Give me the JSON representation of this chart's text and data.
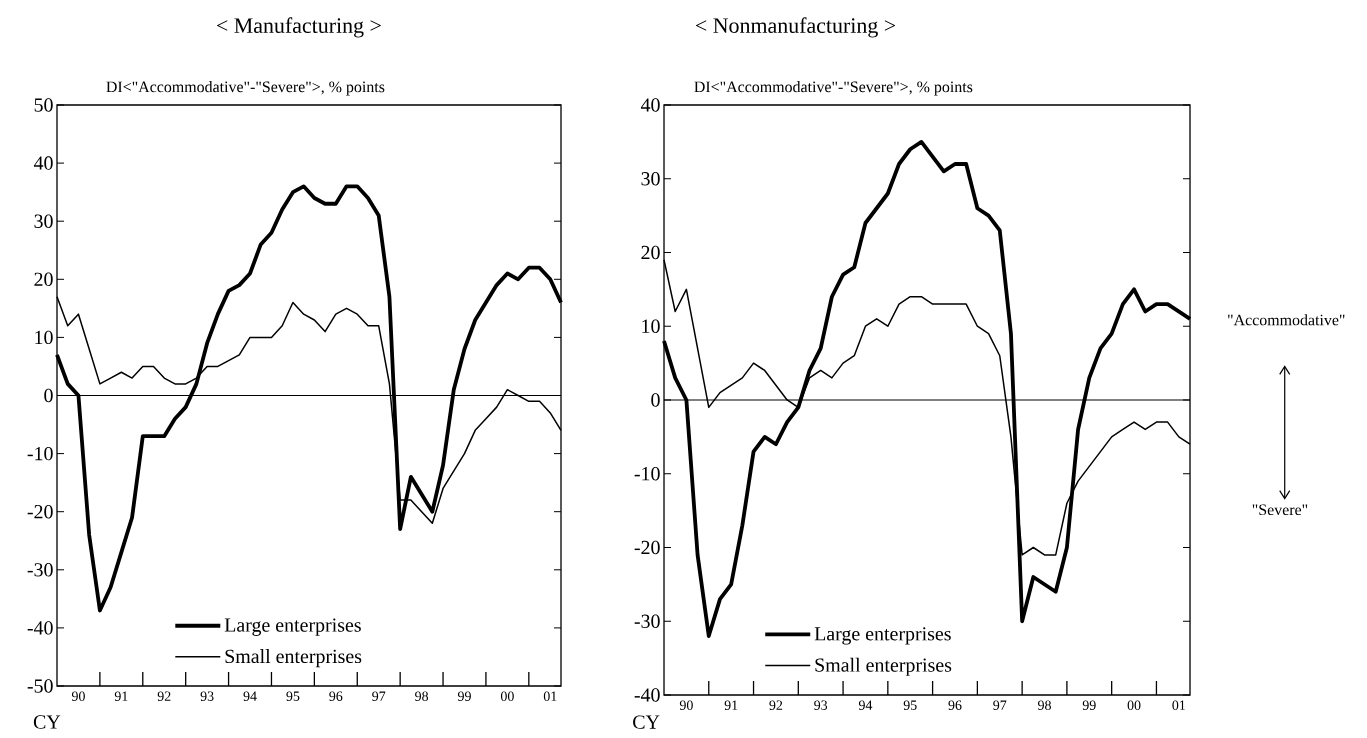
{
  "chart_data": [
    {
      "type": "line",
      "title": "< Manufacturing >",
      "ylabel": "DI<\"Accommodative\"-\"Severe\">, % points",
      "categories": [
        null,
        null,
        "90",
        null,
        null,
        null,
        "91",
        null,
        null,
        null,
        "92",
        null,
        null,
        null,
        "93",
        null,
        null,
        null,
        "94",
        null,
        null,
        null,
        "95",
        null,
        null,
        null,
        "96",
        null,
        null,
        null,
        "97",
        null,
        null,
        null,
        "98",
        null,
        null,
        null,
        "99",
        null,
        null,
        null,
        "00",
        null,
        null,
        null,
        "01",
        null
      ],
      "ylim": [
        -50,
        50
      ],
      "yticks": [
        -50,
        -40,
        -30,
        -20,
        -10,
        0,
        10,
        20,
        30,
        40,
        50
      ],
      "series": [
        {
          "name": "Large enterprises",
          "color": "#000000",
          "values": [
            7,
            2,
            0,
            -24,
            -37,
            -33,
            -27,
            -21,
            -7,
            -7,
            -7,
            -4,
            -2,
            2,
            9,
            14,
            18,
            19,
            21,
            26,
            28,
            32,
            35,
            36,
            34,
            33,
            33,
            36,
            36,
            34,
            31,
            17,
            -23,
            -14,
            -17,
            -20,
            -12,
            1,
            8,
            13,
            16,
            19,
            21,
            20,
            22,
            22,
            20,
            16
          ]
        },
        {
          "name": "Small enterprises",
          "color": "#000000",
          "values": [
            17,
            12,
            14,
            8,
            2,
            3,
            4,
            3,
            5,
            5,
            3,
            2,
            2,
            3,
            5,
            5,
            6,
            7,
            10,
            10,
            10,
            12,
            16,
            14,
            13,
            11,
            14,
            15,
            14,
            12,
            12,
            2,
            -18,
            -18,
            -20,
            -22,
            -16,
            -13,
            -10,
            -6,
            -4,
            -2,
            1,
            0,
            -1,
            -1,
            -3,
            -6
          ]
        }
      ],
      "legend": "bottom",
      "ref_lines": [
        {
          "axis": "y",
          "value": 0
        }
      ],
      "annotations": [
        "CY"
      ]
    },
    {
      "type": "line",
      "title": "< Nonmanufacturing >",
      "ylabel": "DI<\"Accommodative\"-\"Severe\">, % points",
      "categories": [
        null,
        null,
        "90",
        null,
        null,
        null,
        "91",
        null,
        null,
        null,
        "92",
        null,
        null,
        null,
        "93",
        null,
        null,
        null,
        "94",
        null,
        null,
        null,
        "95",
        null,
        null,
        null,
        "96",
        null,
        null,
        null,
        "97",
        null,
        null,
        null,
        "98",
        null,
        null,
        null,
        "99",
        null,
        null,
        null,
        "00",
        null,
        null,
        null,
        "01",
        null
      ],
      "ylim": [
        -40,
        40
      ],
      "yticks": [
        -40,
        -30,
        -20,
        -10,
        0,
        10,
        20,
        30,
        40
      ],
      "series": [
        {
          "name": "Large enterprises",
          "color": "#000000",
          "values": [
            8,
            3,
            0,
            -21,
            -32,
            -27,
            -25,
            -17,
            -7,
            -5,
            -6,
            -3,
            -1,
            4,
            7,
            14,
            17,
            18,
            24,
            26,
            28,
            32,
            34,
            35,
            33,
            31,
            32,
            32,
            26,
            25,
            23,
            9,
            -30,
            -24,
            -25,
            -26,
            -20,
            -4,
            3,
            7,
            9,
            13,
            15,
            12,
            13,
            13,
            12,
            11
          ]
        },
        {
          "name": "Small enterprises",
          "color": "#000000",
          "values": [
            19,
            12,
            15,
            7,
            -1,
            1,
            2,
            3,
            5,
            4,
            2,
            0,
            -1,
            3,
            4,
            3,
            5,
            6,
            10,
            11,
            10,
            13,
            14,
            14,
            13,
            13,
            13,
            13,
            10,
            9,
            6,
            -5,
            -21,
            -20,
            -21,
            -21,
            -14,
            -11,
            -9,
            -7,
            -5,
            -4,
            -3,
            -4,
            -3,
            -3,
            -5,
            -6
          ]
        }
      ],
      "legend": "bottom",
      "ref_lines": [
        {
          "axis": "y",
          "value": 0
        }
      ],
      "annotations": [
        "CY",
        "\"Accommodative\"",
        "\"Severe\""
      ]
    }
  ]
}
